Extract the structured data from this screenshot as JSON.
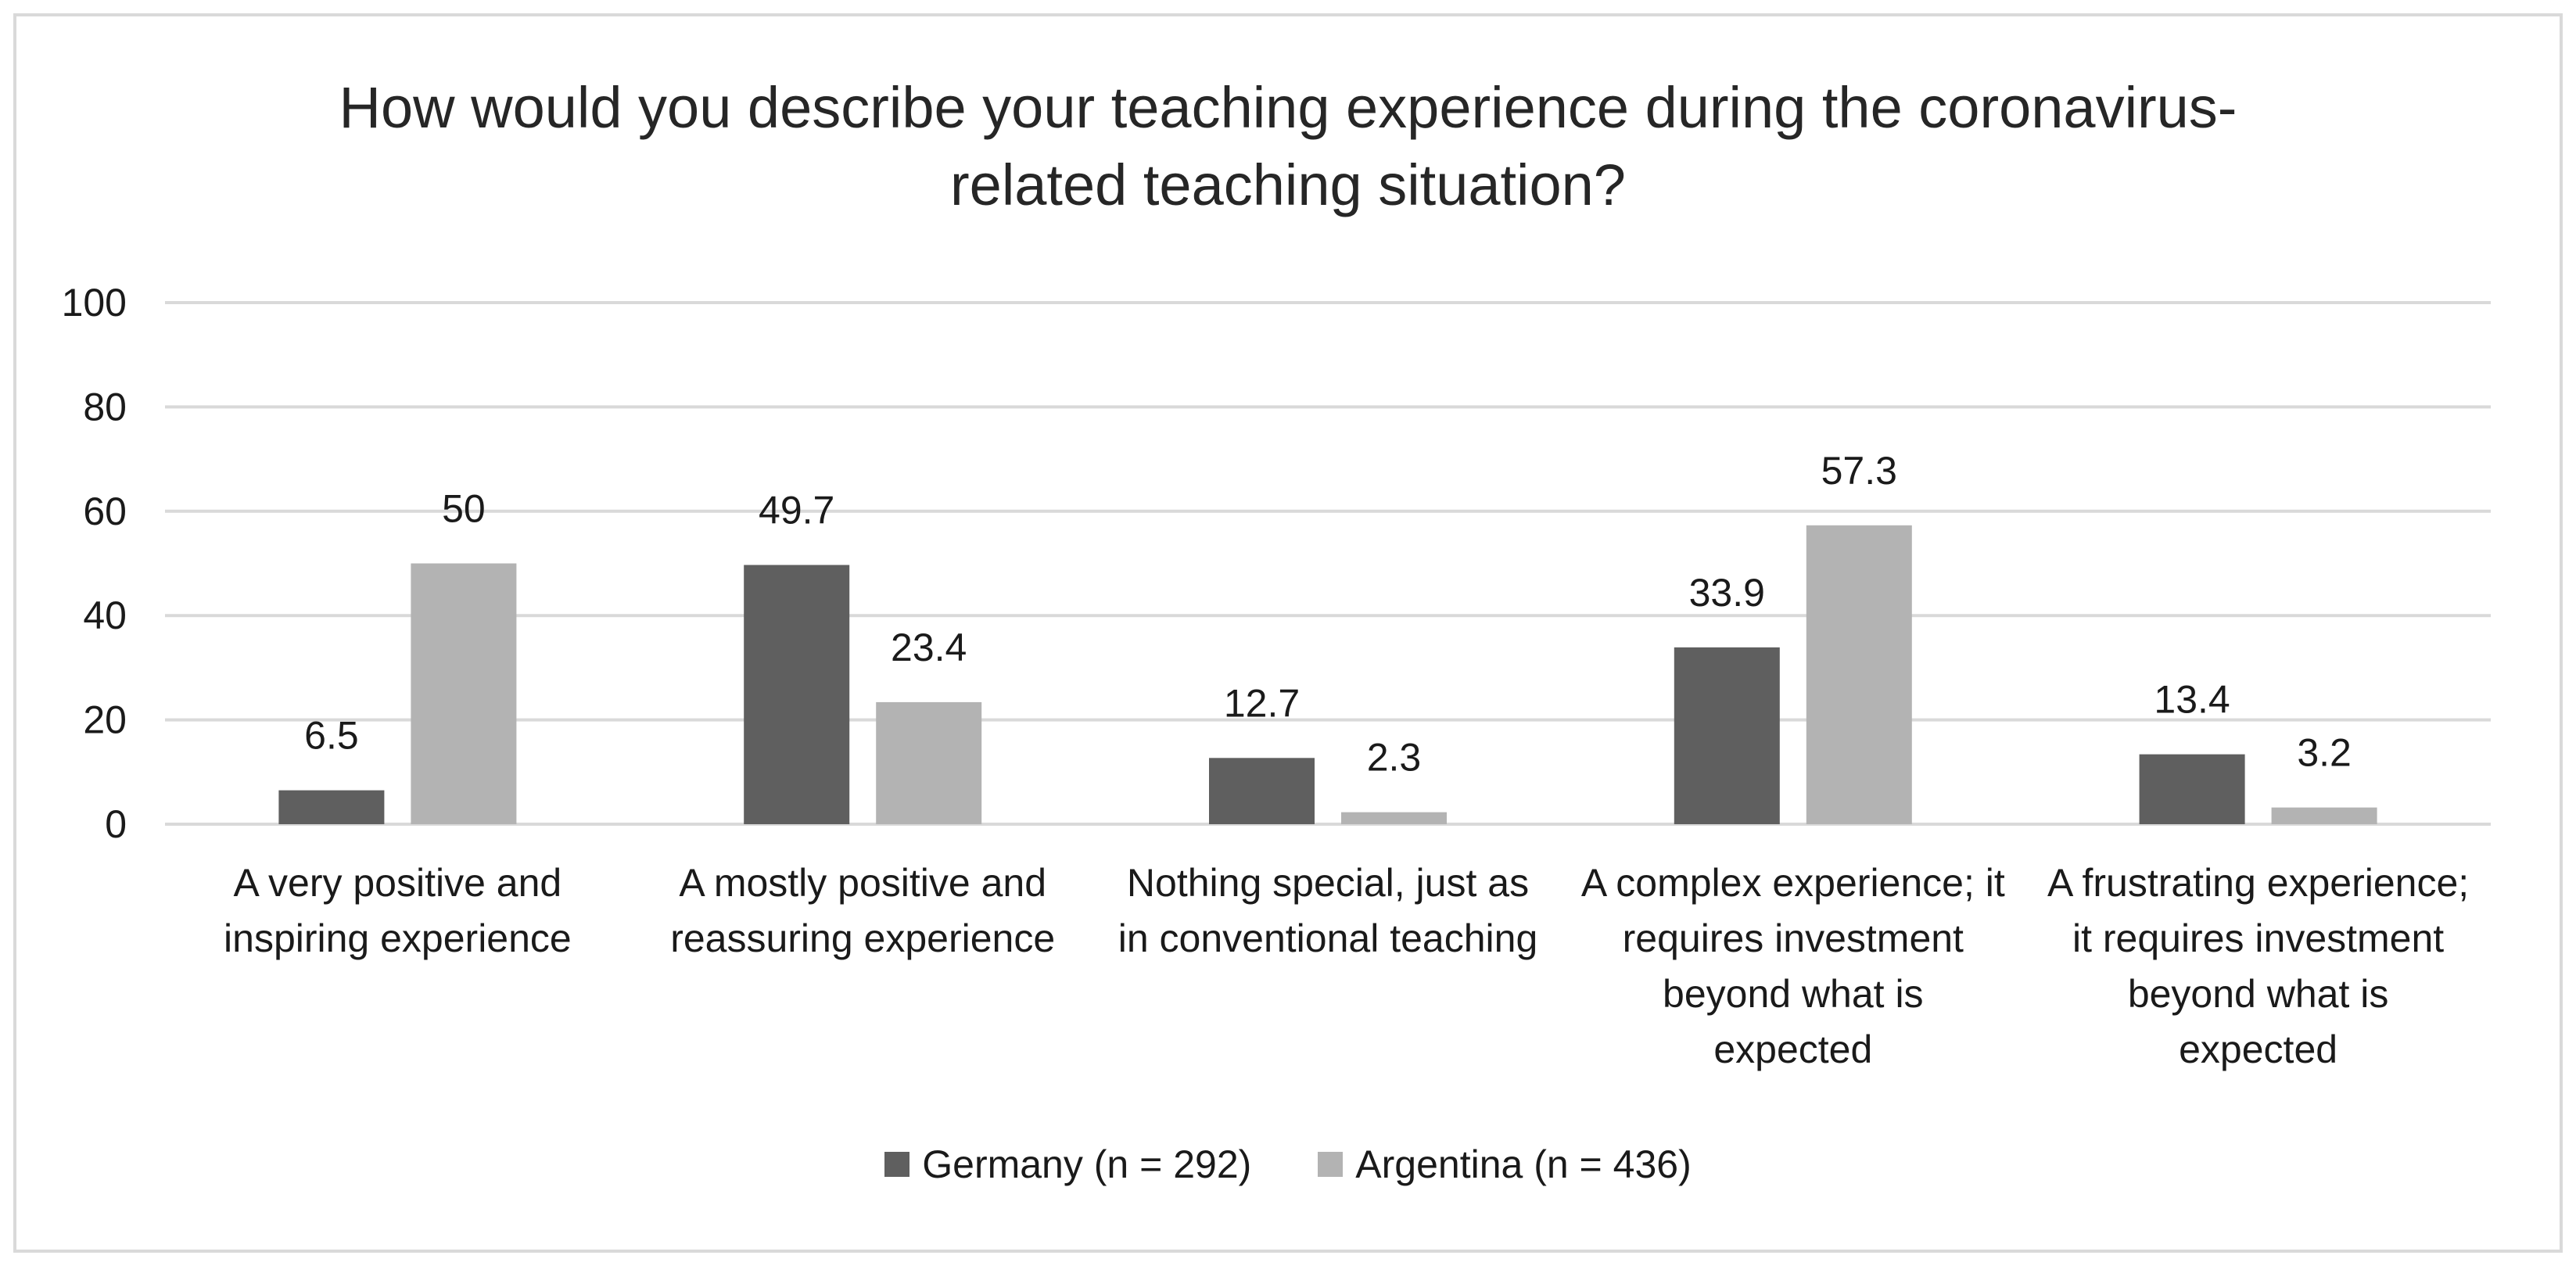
{
  "chart_data": {
    "type": "bar",
    "title": "How would you describe your teaching experience during the coronavirus-related teaching situation?",
    "categories": [
      "A very positive and inspiring experience",
      "A mostly positive and reassuring experience",
      "Nothing special, just as in conventional teaching",
      "A complex experience; it requires investment beyond what is expected",
      "A frustrating experience; it requires investment beyond what is expected"
    ],
    "series": [
      {
        "name": "Germany (n = 292)",
        "values": [
          6.5,
          49.7,
          12.7,
          33.9,
          13.4
        ],
        "color": "#5f5f5f"
      },
      {
        "name": "Argentina (n = 436)",
        "values": [
          50,
          23.4,
          2.3,
          57.3,
          3.2
        ],
        "color": "#b3b3b3"
      }
    ],
    "ylim": [
      0,
      100
    ],
    "yticks": [
      0,
      20,
      40,
      60,
      80,
      100
    ],
    "grid": true,
    "data_labels": true,
    "legend_position": "bottom"
  }
}
